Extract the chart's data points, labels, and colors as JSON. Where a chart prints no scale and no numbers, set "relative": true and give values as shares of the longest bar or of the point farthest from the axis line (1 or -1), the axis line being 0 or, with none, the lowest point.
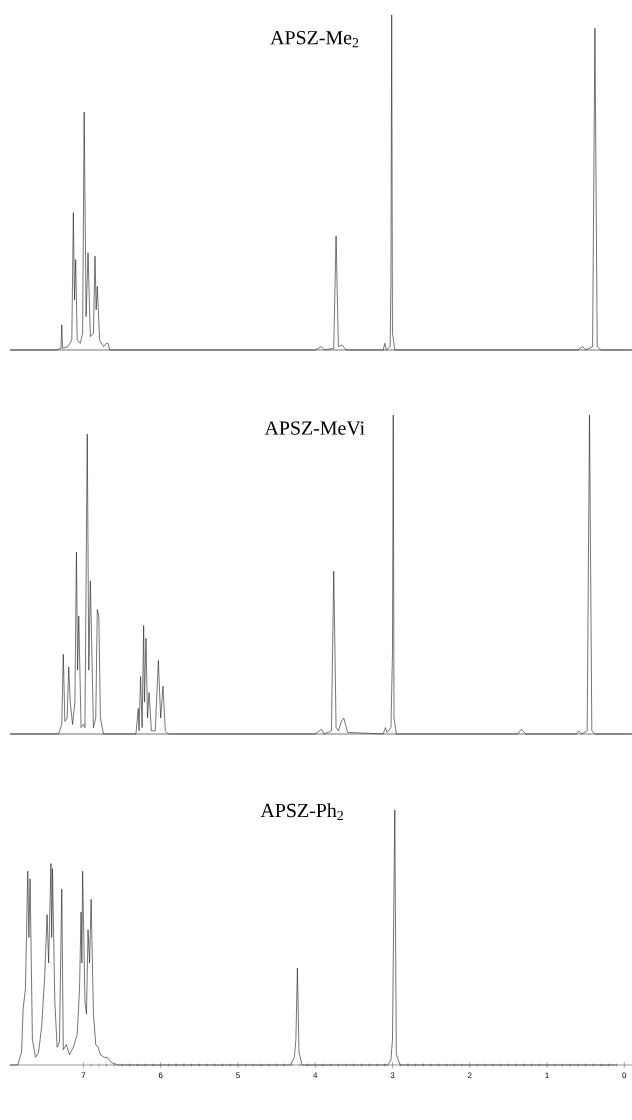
{
  "chart_data": [
    {
      "type": "line",
      "title": "APSZ-Me$_{2}$",
      "relative": true,
      "color": "#1a1a1a",
      "xlim": [
        7.95,
        -0.1
      ],
      "tick_labels": false,
      "x": [
        7.95,
        7.35,
        7.29,
        7.28,
        7.27,
        7.2,
        7.15,
        7.13,
        7.115,
        7.1,
        7.08,
        7.04,
        7.01,
        6.99,
        6.965,
        6.94,
        6.91,
        6.87,
        6.85,
        6.835,
        6.82,
        6.79,
        6.74,
        6.7,
        6.68,
        6.66,
        4.0,
        3.92,
        3.88,
        3.76,
        3.73,
        3.7,
        3.65,
        3.6,
        3.12,
        3.1,
        3.08,
        3.03,
        3.02,
        3.01,
        3.0,
        2.97,
        0.6,
        0.54,
        0.5,
        0.41,
        0.38,
        0.35,
        0.3,
        -0.1
      ],
      "values": [
        0,
        0,
        0.005,
        0.075,
        0.005,
        0.01,
        0.03,
        0.41,
        0.15,
        0.27,
        0.03,
        0.02,
        0.05,
        0.71,
        0.1,
        0.29,
        0.04,
        0.05,
        0.28,
        0.12,
        0.19,
        0.03,
        0.01,
        0.02,
        0.02,
        0,
        0,
        0.01,
        0,
        0.005,
        0.34,
        0.01,
        0.015,
        0,
        0,
        0.02,
        0,
        0.01,
        0.2,
        1,
        0.05,
        0,
        0,
        0.01,
        0,
        0.01,
        0.96,
        0.01,
        0,
        0
      ]
    },
    {
      "type": "line",
      "title": "APSZ-MeVi",
      "relative": true,
      "color": "#1a1a1a",
      "xlim": [
        7.95,
        -0.1
      ],
      "tick_labels": false,
      "x": [
        7.95,
        7.32,
        7.28,
        7.26,
        7.24,
        7.21,
        7.19,
        7.17,
        7.14,
        7.11,
        7.09,
        7.075,
        7.06,
        7.03,
        7.0,
        6.98,
        6.95,
        6.93,
        6.91,
        6.87,
        6.84,
        6.82,
        6.8,
        6.78,
        6.74,
        6.32,
        6.29,
        6.28,
        6.26,
        6.24,
        6.22,
        6.21,
        6.19,
        6.17,
        6.15,
        6.12,
        6.07,
        6.03,
        6.0,
        5.97,
        5.94,
        5.9,
        4.0,
        3.92,
        3.88,
        3.79,
        3.76,
        3.73,
        3.7,
        3.66,
        3.63,
        3.58,
        3.12,
        3.09,
        3.07,
        3.02,
        3.0,
        2.99,
        2.98,
        2.95,
        1.38,
        1.33,
        1.28,
        0.62,
        0.59,
        0.55,
        0.48,
        0.45,
        0.42,
        0.38,
        -0.1
      ],
      "values": [
        0,
        0,
        0.03,
        0.25,
        0.04,
        0.05,
        0.21,
        0.1,
        0.03,
        0.1,
        0.57,
        0.2,
        0.37,
        0.02,
        0.03,
        0.02,
        0.94,
        0.2,
        0.48,
        0.02,
        0.05,
        0.39,
        0.37,
        0.05,
        0,
        0,
        0.08,
        0.01,
        0.18,
        0.02,
        0.34,
        0.1,
        0.3,
        0.05,
        0.13,
        0.01,
        0.01,
        0.23,
        0.05,
        0.15,
        0.01,
        0,
        0,
        0.015,
        0,
        0.01,
        0.51,
        0.02,
        0.01,
        0.04,
        0.05,
        0.005,
        0,
        0.02,
        0.005,
        0.02,
        0.25,
        1,
        0.05,
        0,
        0,
        0.015,
        0,
        0,
        0.01,
        0,
        0.01,
        1,
        0.01,
        0,
        0
      ]
    },
    {
      "type": "line",
      "title": "APSZ-Ph$_{2}$",
      "relative": true,
      "color": "#1a1a1a",
      "xlim": [
        7.95,
        -0.1
      ],
      "tick_labels": "x",
      "xticks": [
        7,
        6,
        5,
        4,
        3,
        2,
        1,
        0
      ],
      "x": [
        7.95,
        7.85,
        7.8,
        7.78,
        7.75,
        7.72,
        7.705,
        7.69,
        7.66,
        7.62,
        7.58,
        7.54,
        7.5,
        7.47,
        7.45,
        7.42,
        7.41,
        7.4,
        7.37,
        7.34,
        7.31,
        7.28,
        7.26,
        7.22,
        7.18,
        7.13,
        7.08,
        7.05,
        7.03,
        7.02,
        7.01,
        6.98,
        6.96,
        6.94,
        6.92,
        6.9,
        6.87,
        6.84,
        6.81,
        6.78,
        6.73,
        6.69,
        6.64,
        6.55,
        4.32,
        4.27,
        4.25,
        4.23,
        4.21,
        4.17,
        3.06,
        3.02,
        3.0,
        2.97,
        2.95,
        2.9,
        0.1
      ],
      "values": [
        0,
        0,
        0.05,
        0.22,
        0.3,
        0.76,
        0.5,
        0.73,
        0.1,
        0.03,
        0.05,
        0.15,
        0.35,
        0.59,
        0.4,
        0.79,
        0.5,
        0.77,
        0.25,
        0.07,
        0.09,
        0.69,
        0.06,
        0.08,
        0.04,
        0.07,
        0.12,
        0.3,
        0.6,
        0.4,
        0.76,
        0.25,
        0.2,
        0.53,
        0.4,
        0.65,
        0.2,
        0.08,
        0.07,
        0.04,
        0.03,
        0.03,
        0.01,
        0,
        0,
        0.03,
        0.1,
        0.38,
        0.05,
        0,
        0,
        0.02,
        0.1,
        1,
        0.04,
        0,
        0
      ]
    }
  ]
}
